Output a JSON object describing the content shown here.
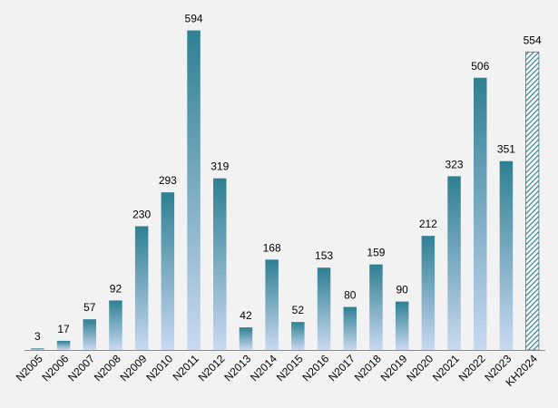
{
  "chart_data": {
    "type": "bar",
    "title": "",
    "xlabel": "",
    "ylabel": "",
    "ylim": [
      0,
      600
    ],
    "grid": false,
    "categories": [
      "N2005",
      "N2006",
      "N2007",
      "N2008",
      "N2009",
      "N2010",
      "N2011",
      "N2012",
      "N2013",
      "N2014",
      "N2015",
      "N2016",
      "N2017",
      "N2018",
      "N2019",
      "N2020",
      "N2021",
      "N2022",
      "N2023",
      "KH2024"
    ],
    "values": [
      3,
      17,
      57,
      92,
      230,
      293,
      594,
      319,
      42,
      168,
      52,
      153,
      80,
      159,
      90,
      212,
      323,
      506,
      351,
      554
    ],
    "styles": [
      "solid",
      "solid",
      "solid",
      "solid",
      "solid",
      "solid",
      "solid",
      "solid",
      "solid",
      "solid",
      "solid",
      "solid",
      "solid",
      "solid",
      "solid",
      "solid",
      "solid",
      "solid",
      "solid",
      "hatched"
    ]
  },
  "colors": {
    "bar_top": "#2f7f93",
    "bar_bottom": "#c9d9f2",
    "hatch": "#2f7f93",
    "axis": "#8c8c8c",
    "background": "#f2f2f2"
  }
}
